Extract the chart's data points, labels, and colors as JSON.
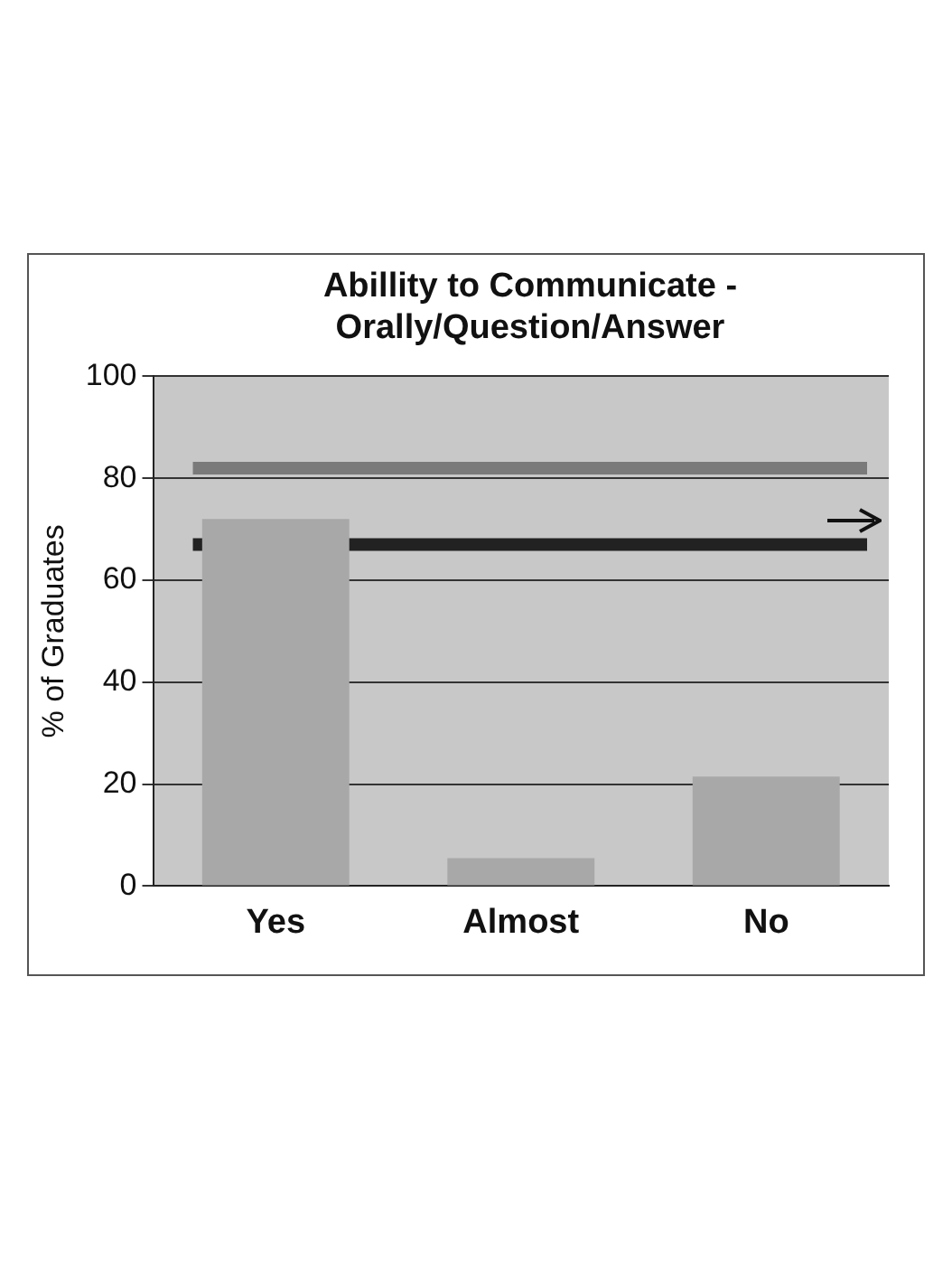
{
  "chart_data": {
    "type": "bar",
    "title": "Abillity to Communicate  -\nOrally/Question/Answer",
    "ylabel": "% of Graduates",
    "categories": [
      "Yes",
      "Almost",
      "No"
    ],
    "values": [
      72,
      5.5,
      21.5
    ],
    "color": "#a8a8a8",
    "ylim": [
      0,
      100
    ],
    "yticks": [
      0,
      20,
      40,
      60,
      80,
      100
    ],
    "grid": "y",
    "ref_lines": [
      {
        "axis": "y",
        "value": 82,
        "label": null,
        "color": "#7a7a7a"
      },
      {
        "axis": "y",
        "value": 67,
        "label": null,
        "color": "#222222"
      }
    ]
  }
}
